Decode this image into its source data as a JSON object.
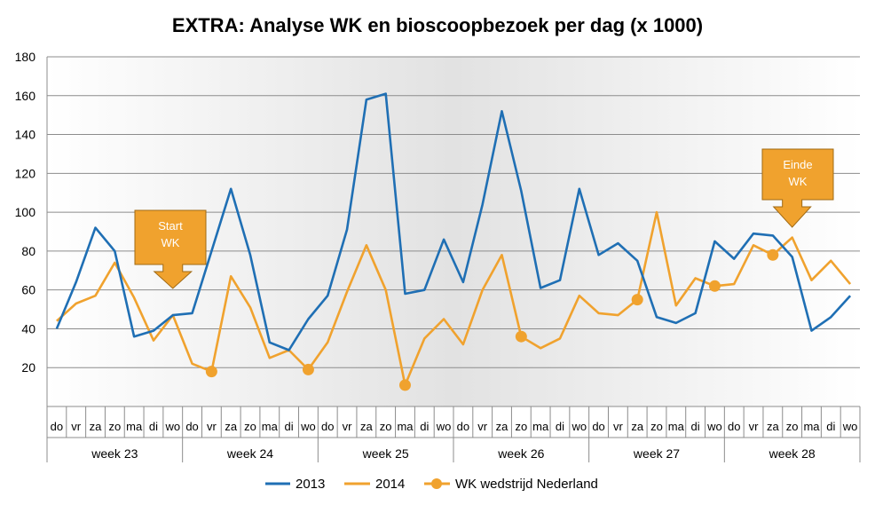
{
  "chart_data": {
    "type": "line",
    "title": "EXTRA: Analyse WK en bioscoopbezoek per dag (x 1000)",
    "ylim": [
      0,
      180
    ],
    "yticks": [
      20,
      40,
      60,
      80,
      100,
      120,
      140,
      160,
      180
    ],
    "grid": true,
    "x": [
      "do",
      "vr",
      "za",
      "zo",
      "ma",
      "di",
      "wo",
      "do",
      "vr",
      "za",
      "zo",
      "ma",
      "di",
      "wo",
      "do",
      "vr",
      "za",
      "zo",
      "ma",
      "di",
      "wo",
      "do",
      "vr",
      "za",
      "zo",
      "ma",
      "di",
      "wo",
      "do",
      "vr",
      "za",
      "zo",
      "ma",
      "di",
      "wo",
      "do",
      "vr",
      "za",
      "zo",
      "ma",
      "di",
      "wo"
    ],
    "weeks": [
      "week 23",
      "week 24",
      "week 25",
      "week 26",
      "week 27",
      "week 28"
    ],
    "series": [
      {
        "name": "2013",
        "color": "#1F6FB4",
        "values": [
          40,
          64,
          92,
          80,
          36,
          39,
          47,
          48,
          80,
          112,
          78,
          33,
          29,
          45,
          57,
          91,
          158,
          161,
          58,
          60,
          86,
          64,
          104,
          152,
          111,
          61,
          65,
          112,
          78,
          84,
          75,
          46,
          43,
          48,
          85,
          76,
          89,
          88,
          77,
          39,
          46,
          57
        ]
      },
      {
        "name": "2014",
        "color": "#F0A22E",
        "values": [
          44,
          53,
          57,
          74,
          56,
          34,
          47,
          22,
          18,
          67,
          51,
          25,
          29,
          19,
          33,
          59,
          83,
          60,
          11,
          35,
          45,
          32,
          60,
          78,
          36,
          30,
          35,
          57,
          48,
          47,
          55,
          100,
          52,
          66,
          62,
          63,
          83,
          78,
          87,
          65,
          75,
          63
        ]
      },
      {
        "name": "WK wedstrijd Nederland",
        "color": "#F0A22E",
        "points": [
          {
            "i": 8,
            "y": 18
          },
          {
            "i": 13,
            "y": 19
          },
          {
            "i": 18,
            "y": 11
          },
          {
            "i": 24,
            "y": 36
          },
          {
            "i": 30,
            "y": 55
          },
          {
            "i": 34,
            "y": 62
          },
          {
            "i": 37,
            "y": 78
          }
        ]
      }
    ],
    "annotations": [
      {
        "text": [
          "Start",
          "WK"
        ],
        "at_index": 6
      },
      {
        "text": [
          "Einde",
          "WK"
        ],
        "at_index": 38
      }
    ]
  }
}
